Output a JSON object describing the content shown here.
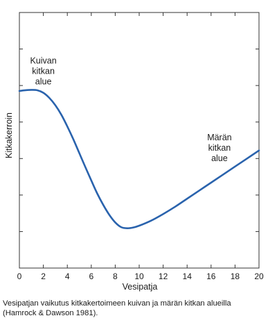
{
  "chart_data": {
    "type": "line",
    "title": "",
    "xlabel": "Vesipatja",
    "ylabel": "Kitkakerroin",
    "xlim": [
      0,
      20
    ],
    "xticks": [
      "0",
      "2",
      "4",
      "6",
      "8",
      "10",
      "12",
      "14",
      "16",
      "18",
      "20"
    ],
    "ylim": [
      0,
      7
    ],
    "yticks_unlabeled": [
      1,
      2,
      3,
      4,
      5,
      6
    ],
    "y_tick_labels_visible": false,
    "grid": false,
    "line_color": "#2a63ad",
    "series": [
      {
        "x": [
          0,
          0.5,
          1,
          1.5,
          2,
          2.5,
          3,
          3.5,
          4,
          4.5,
          5,
          5.5,
          6,
          6.5,
          7,
          7.5,
          8,
          8.5,
          9,
          9.5,
          10,
          11,
          12,
          13,
          14,
          15,
          16,
          17,
          18,
          19,
          20
        ],
        "y": [
          4.85,
          4.87,
          4.88,
          4.87,
          4.8,
          4.66,
          4.46,
          4.2,
          3.88,
          3.53,
          3.15,
          2.77,
          2.4,
          2.04,
          1.73,
          1.46,
          1.25,
          1.12,
          1.09,
          1.11,
          1.16,
          1.3,
          1.48,
          1.68,
          1.9,
          2.12,
          2.34,
          2.56,
          2.78,
          3.0,
          3.22
        ]
      }
    ],
    "annotations": [
      {
        "lines": [
          "Kuivan",
          "kitkan",
          "alue"
        ],
        "x": 2,
        "y": 5.6
      },
      {
        "lines": [
          "Märän",
          "kitkan",
          "alue"
        ],
        "x": 16.7,
        "y": 3.5
      }
    ]
  },
  "caption": {
    "line1": "Vesipatjan vaikutus kitkakertoimeen kuivan ja märän kitkan alueilla",
    "line2": "(Hamrock & Dawson 1981)."
  }
}
